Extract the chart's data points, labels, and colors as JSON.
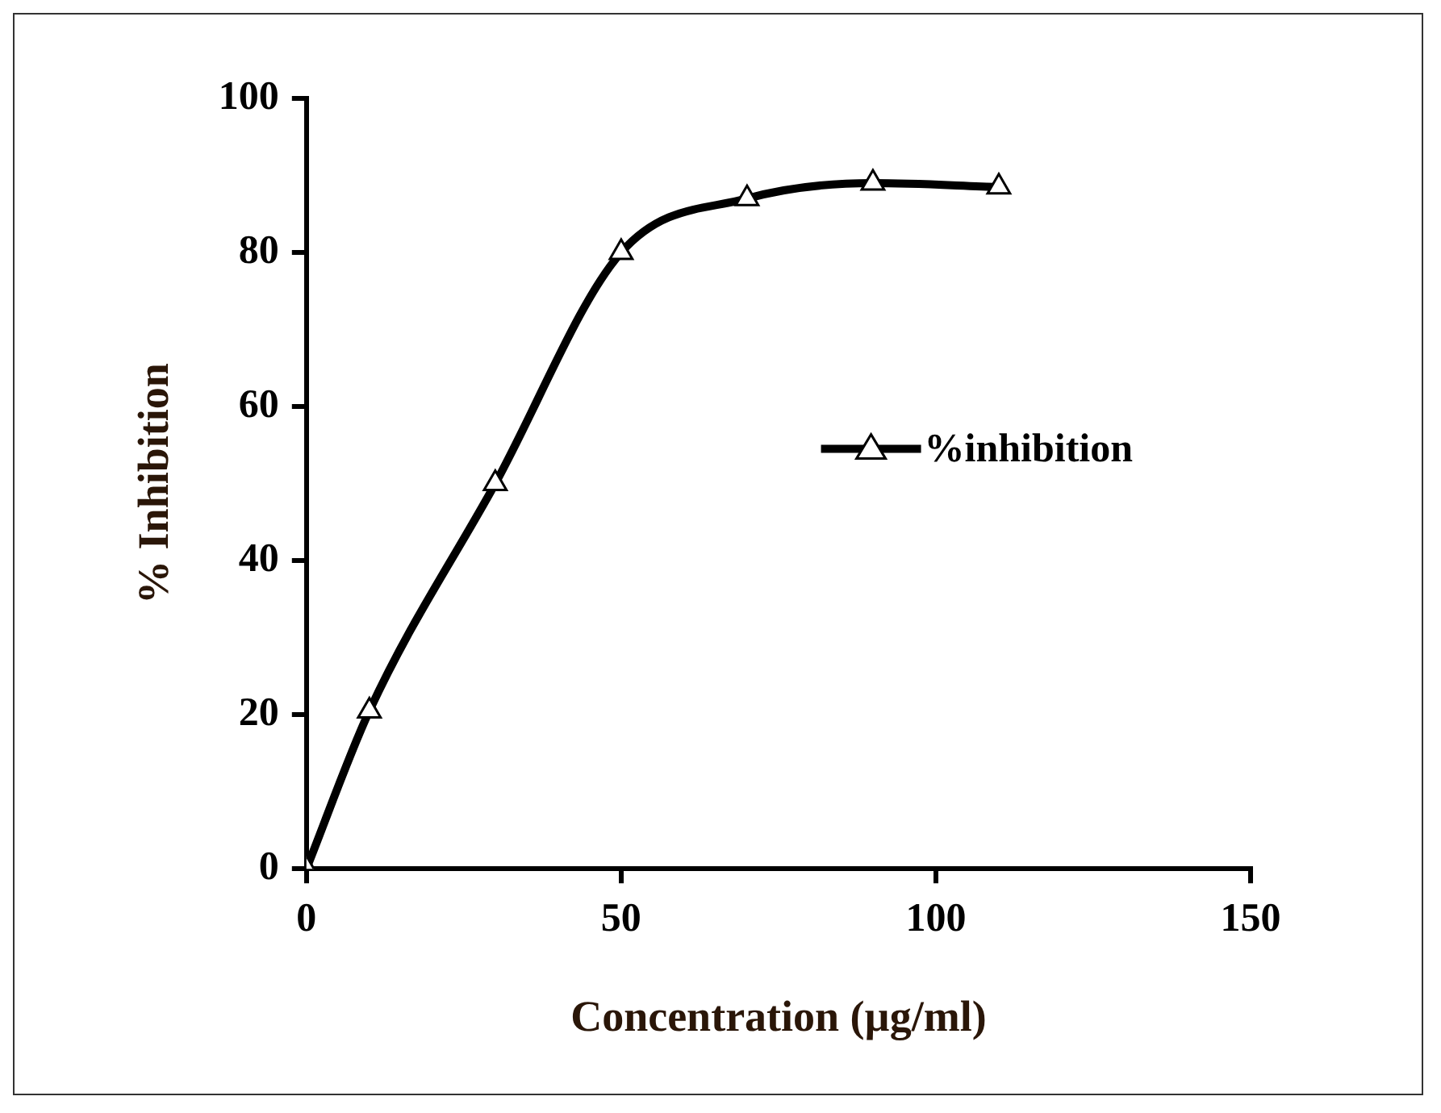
{
  "chart_data": {
    "type": "line",
    "xlabel": "Concentration (µg/ml)",
    "ylabel": "% Inhibition",
    "x": [
      0,
      10,
      30,
      50,
      70,
      90,
      110
    ],
    "series": [
      {
        "name": "%inhibition",
        "color": "#000000",
        "values": [
          0,
          20.5,
          50,
          80,
          87,
          89,
          88.5
        ]
      }
    ],
    "xlim": [
      0,
      150
    ],
    "xticks": [
      0,
      50,
      100,
      150
    ],
    "ylim": [
      0,
      100
    ],
    "yticks": [
      0,
      20,
      40,
      60,
      80,
      100
    ],
    "grid": false,
    "legend": "right",
    "marker": "triangle",
    "line_style": "solid"
  }
}
